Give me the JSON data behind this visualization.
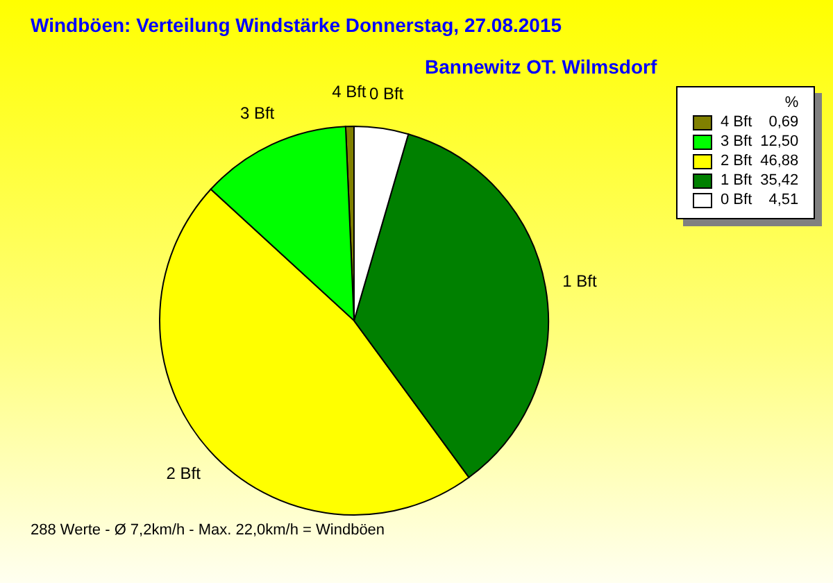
{
  "chart_data": {
    "type": "pie",
    "title": "Windböen: Verteilung Windstärke  Donnerstag, 27.08.2015",
    "subtitle": "Bannewitz OT. Wilmsdorf",
    "categories": [
      "4 Bft",
      "3 Bft",
      "2 Bft",
      "1 Bft",
      "0 Bft"
    ],
    "values": [
      0.69,
      12.5,
      46.88,
      35.42,
      4.51
    ],
    "colors": [
      "#808000",
      "#00ff00",
      "#ffff00",
      "#008000",
      "#ffffff"
    ],
    "value_labels": [
      "0,69",
      "12,50",
      "46,88",
      "35,42",
      "4,51"
    ],
    "legend_title": "%",
    "legend": "top right",
    "annotations": [
      "288 Werte   -   Ø 7,2km/h  -  Max. 22,0km/h = Windböen"
    ]
  }
}
